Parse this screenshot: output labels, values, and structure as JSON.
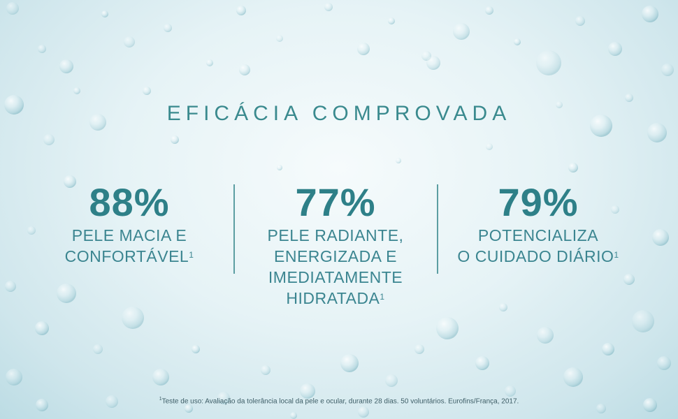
{
  "title": "EFICÁCIA COMPROVADA",
  "stats": [
    {
      "value": "88%",
      "description": "PELE MACIA E\nCONFORTÁVEL",
      "footnote_mark": "1"
    },
    {
      "value": "77%",
      "description": "PELE RADIANTE,\nENERGIZADA E\nIMEDIATAMENTE\nHIDRATADA",
      "footnote_mark": "1"
    },
    {
      "value": "79%",
      "description": "POTENCIALIZA\nO CUIDADO DIÁRIO",
      "footnote_mark": "1"
    }
  ],
  "footnote": {
    "mark": "1",
    "text": "Teste de uso: Avaliação da tolerância local da pele e ocular, durante 28 dias. 50 voluntários. Eurofins/França, 2017."
  },
  "colors": {
    "accent": "#2e8088",
    "title": "#3a8a8e",
    "divider": "#5c9ea2",
    "background": "#e6f3f6"
  }
}
